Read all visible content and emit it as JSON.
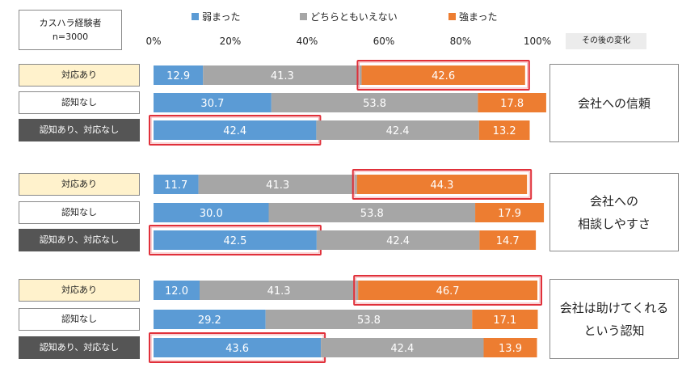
{
  "header_box": {
    "line1": "カスハラ経験者",
    "line2": "n=3000"
  },
  "change_label": "その後の変化",
  "colors": {
    "weakened": "#5b9bd5",
    "neutral": "#a6a6a6",
    "strengthened": "#ed7d31",
    "highlight": "#e0303a"
  },
  "chart_data": {
    "type": "bar",
    "stacked": true,
    "orientation": "horizontal",
    "xlim": [
      0,
      100
    ],
    "x_ticks": [
      "0%",
      "20%",
      "40%",
      "60%",
      "80%",
      "100%"
    ],
    "legend": [
      "弱まった",
      "どちらともいえない",
      "強まった"
    ],
    "legend_position": "top",
    "groups": [
      {
        "title": "会社への信頼",
        "rows": [
          {
            "label": "対応あり",
            "style": "yellow",
            "values": [
              "12.9",
              "41.3",
              "42.6"
            ],
            "highlight": 2
          },
          {
            "label": "認知なし",
            "style": "white",
            "values": [
              "30.7",
              "53.8",
              "17.8"
            ],
            "highlight": -1
          },
          {
            "label": "認知あり、対応なし",
            "style": "dark",
            "values": [
              "42.4",
              "42.4",
              "13.2"
            ],
            "highlight": 0
          }
        ]
      },
      {
        "title": "会社への\n相談しやすさ",
        "rows": [
          {
            "label": "対応あり",
            "style": "yellow",
            "values": [
              "11.7",
              "41.3",
              "44.3"
            ],
            "highlight": 2
          },
          {
            "label": "認知なし",
            "style": "white",
            "values": [
              "30.0",
              "53.8",
              "17.9"
            ],
            "highlight": -1
          },
          {
            "label": "認知あり、対応なし",
            "style": "dark",
            "values": [
              "42.5",
              "42.4",
              "14.7"
            ],
            "highlight": 0
          }
        ]
      },
      {
        "title": "会社は助けてくれる\nという認知",
        "rows": [
          {
            "label": "対応あり",
            "style": "yellow",
            "values": [
              "12.0",
              "41.3",
              "46.7"
            ],
            "highlight": 2
          },
          {
            "label": "認知なし",
            "style": "white",
            "values": [
              "29.2",
              "53.8",
              "17.1"
            ],
            "highlight": -1
          },
          {
            "label": "認知あり、対応なし",
            "style": "dark",
            "values": [
              "43.6",
              "42.4",
              "13.9"
            ],
            "highlight": 0
          }
        ]
      }
    ]
  }
}
